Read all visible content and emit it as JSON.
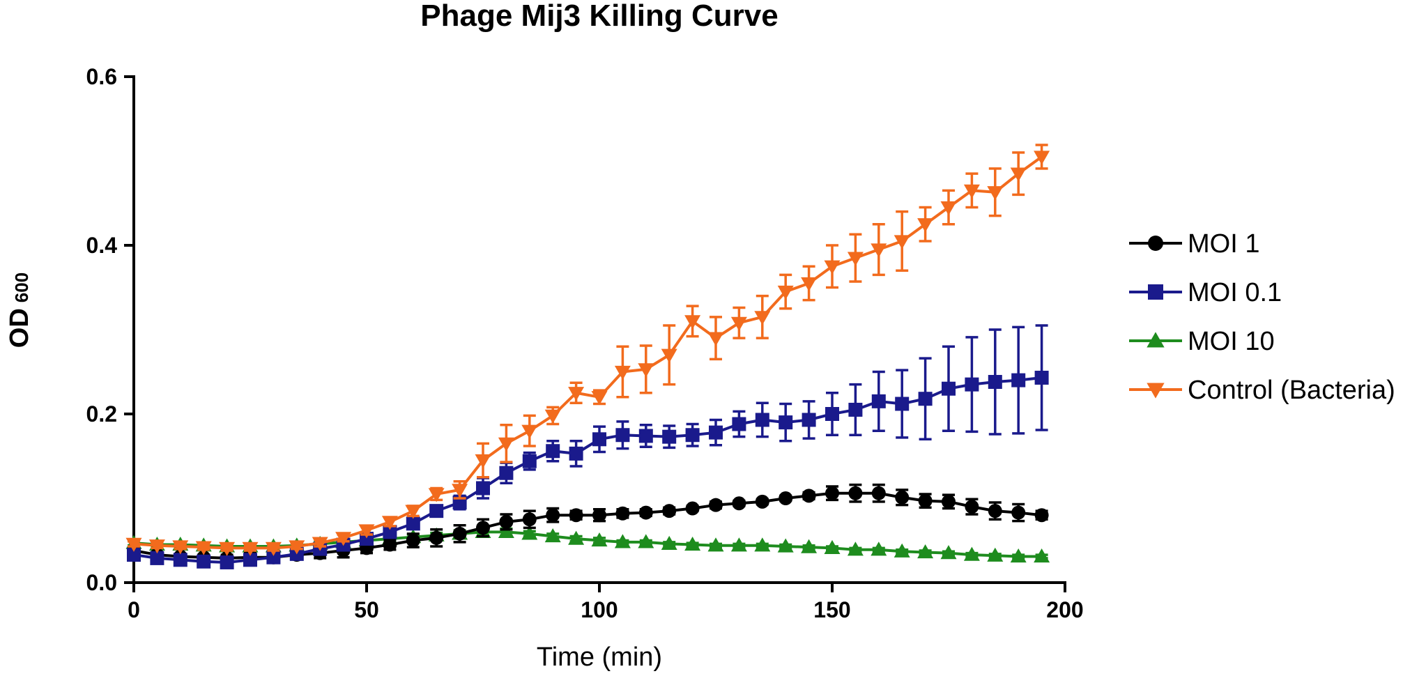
{
  "chart_data": {
    "type": "line",
    "title": "Phage Mij3 Killing Curve",
    "xlabel": "Time (min)",
    "ylabel": "OD",
    "ylabel_sub": "600",
    "xlim": [
      0,
      200
    ],
    "ylim": [
      0,
      0.6
    ],
    "xticks": [
      0,
      50,
      100,
      150,
      200
    ],
    "xtick_labels": [
      "0",
      "50",
      "100",
      "150",
      "200"
    ],
    "yticks": [
      0,
      0.2,
      0.4,
      0.6
    ],
    "ytick_labels": [
      "0.0",
      "0.2",
      "0.4",
      "0.6"
    ],
    "legend_position": "right",
    "x": [
      0,
      5,
      10,
      15,
      20,
      25,
      30,
      35,
      40,
      45,
      50,
      55,
      60,
      65,
      70,
      75,
      80,
      85,
      90,
      95,
      100,
      105,
      110,
      115,
      120,
      125,
      130,
      135,
      140,
      145,
      150,
      155,
      160,
      165,
      170,
      175,
      180,
      185,
      190,
      195
    ],
    "series": [
      {
        "name": "MOI 1",
        "color": "#000000",
        "marker": "circle",
        "values": [
          0.038,
          0.033,
          0.031,
          0.03,
          0.029,
          0.03,
          0.03,
          0.033,
          0.035,
          0.038,
          0.041,
          0.045,
          0.05,
          0.053,
          0.058,
          0.065,
          0.072,
          0.075,
          0.08,
          0.08,
          0.08,
          0.082,
          0.083,
          0.085,
          0.088,
          0.092,
          0.094,
          0.096,
          0.1,
          0.103,
          0.106,
          0.106,
          0.106,
          0.101,
          0.097,
          0.096,
          0.09,
          0.085,
          0.083,
          0.08
        ],
        "errors": [
          0.004,
          0.003,
          0.003,
          0.003,
          0.004,
          0.005,
          0.005,
          0.005,
          0.006,
          0.008,
          0.006,
          0.006,
          0.008,
          0.01,
          0.01,
          0.01,
          0.009,
          0.01,
          0.008,
          0.005,
          0.007,
          0.005,
          0.004,
          0.004,
          0.003,
          0.004,
          0.003,
          0.003,
          0.003,
          0.004,
          0.008,
          0.01,
          0.01,
          0.009,
          0.008,
          0.008,
          0.009,
          0.01,
          0.01,
          0.005
        ]
      },
      {
        "name": "MOI 0.1",
        "color": "#1a1a8c",
        "marker": "square",
        "values": [
          0.033,
          0.029,
          0.027,
          0.025,
          0.024,
          0.027,
          0.03,
          0.034,
          0.04,
          0.045,
          0.052,
          0.06,
          0.07,
          0.085,
          0.095,
          0.112,
          0.13,
          0.144,
          0.156,
          0.153,
          0.17,
          0.175,
          0.174,
          0.173,
          0.175,
          0.178,
          0.188,
          0.193,
          0.19,
          0.193,
          0.2,
          0.205,
          0.215,
          0.212,
          0.218,
          0.23,
          0.235,
          0.238,
          0.24,
          0.243
        ],
        "errors": [
          0.004,
          0.003,
          0.003,
          0.003,
          0.003,
          0.004,
          0.004,
          0.004,
          0.004,
          0.004,
          0.005,
          0.005,
          0.006,
          0.006,
          0.008,
          0.012,
          0.012,
          0.01,
          0.012,
          0.015,
          0.015,
          0.016,
          0.013,
          0.013,
          0.013,
          0.015,
          0.015,
          0.02,
          0.022,
          0.022,
          0.025,
          0.03,
          0.035,
          0.04,
          0.048,
          0.05,
          0.056,
          0.062,
          0.063,
          0.062
        ]
      },
      {
        "name": "MOI 10",
        "color": "#1e8c1e",
        "marker": "triangle-up",
        "values": [
          0.047,
          0.045,
          0.045,
          0.044,
          0.043,
          0.043,
          0.043,
          0.044,
          0.046,
          0.048,
          0.05,
          0.052,
          0.054,
          0.056,
          0.058,
          0.06,
          0.06,
          0.058,
          0.055,
          0.052,
          0.05,
          0.048,
          0.048,
          0.046,
          0.045,
          0.044,
          0.044,
          0.044,
          0.043,
          0.042,
          0.041,
          0.039,
          0.039,
          0.037,
          0.036,
          0.035,
          0.033,
          0.032,
          0.031,
          0.031
        ],
        "errors": [
          0.003,
          0.002,
          0.002,
          0.002,
          0.002,
          0.002,
          0.002,
          0.002,
          0.002,
          0.002,
          0.002,
          0.002,
          0.003,
          0.003,
          0.004,
          0.004,
          0.004,
          0.003,
          0.003,
          0.003,
          0.003,
          0.002,
          0.002,
          0.002,
          0.002,
          0.002,
          0.002,
          0.002,
          0.002,
          0.002,
          0.002,
          0.002,
          0.002,
          0.002,
          0.002,
          0.002,
          0.002,
          0.002,
          0.002,
          0.002
        ]
      },
      {
        "name": "Control (Bacteria)",
        "color": "#f26b1d",
        "marker": "triangle-down",
        "values": [
          0.046,
          0.044,
          0.043,
          0.042,
          0.041,
          0.041,
          0.041,
          0.043,
          0.047,
          0.053,
          0.062,
          0.072,
          0.085,
          0.105,
          0.11,
          0.145,
          0.165,
          0.18,
          0.198,
          0.225,
          0.22,
          0.25,
          0.253,
          0.27,
          0.31,
          0.29,
          0.308,
          0.315,
          0.345,
          0.355,
          0.375,
          0.385,
          0.395,
          0.405,
          0.425,
          0.445,
          0.465,
          0.463,
          0.485,
          0.505
        ],
        "errors": [
          0.003,
          0.003,
          0.003,
          0.003,
          0.003,
          0.003,
          0.003,
          0.003,
          0.004,
          0.004,
          0.005,
          0.005,
          0.006,
          0.007,
          0.01,
          0.02,
          0.022,
          0.018,
          0.01,
          0.012,
          0.008,
          0.03,
          0.028,
          0.035,
          0.018,
          0.025,
          0.018,
          0.025,
          0.02,
          0.02,
          0.025,
          0.028,
          0.03,
          0.035,
          0.02,
          0.02,
          0.02,
          0.028,
          0.025,
          0.014
        ]
      }
    ]
  }
}
